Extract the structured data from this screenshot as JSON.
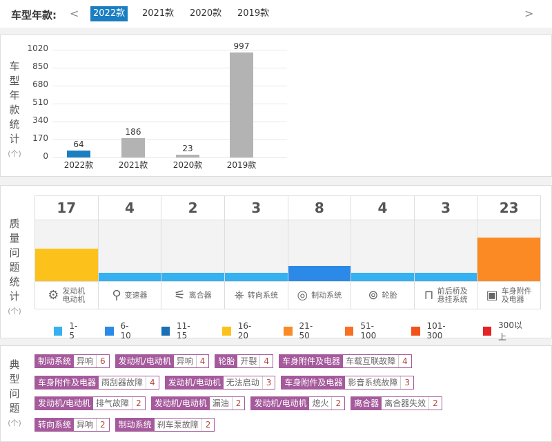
{
  "header": {
    "label": "车型年款:",
    "prev": "<",
    "next": ">",
    "years": [
      "2022款",
      "2021款",
      "2020款",
      "2019款"
    ],
    "selected": "2022款"
  },
  "chart_data": {
    "type": "bar",
    "ylabel_chars": [
      "车",
      "型",
      "年",
      "款",
      "统",
      "计"
    ],
    "unit": "(个)",
    "categories": [
      "2022款",
      "2021款",
      "2020款",
      "2019款"
    ],
    "values": [
      64,
      186,
      23,
      997
    ],
    "yticks": [
      0,
      170,
      340,
      510,
      680,
      850,
      1020
    ],
    "ylim": [
      0,
      1020
    ],
    "colors": [
      "#1b7ec2",
      "#b3b3b3",
      "#b3b3b3",
      "#b3b3b3"
    ],
    "grid": true
  },
  "quality": {
    "label_chars": [
      "质",
      "量",
      "问",
      "题",
      "统",
      "计"
    ],
    "unit": "(个)",
    "items": [
      {
        "count": "17",
        "label": [
          "发动机",
          "电动机"
        ],
        "icon": "engine-icon",
        "value": 17,
        "color": "#fcc21b"
      },
      {
        "count": "4",
        "label": [
          "变速器"
        ],
        "icon": "gear-shift-icon",
        "value": 4,
        "color": "#35b0f0"
      },
      {
        "count": "2",
        "label": [
          "离合器"
        ],
        "icon": "clutch-pedal-icon",
        "value": 2,
        "color": "#35b0f0"
      },
      {
        "count": "3",
        "label": [
          "转向系统"
        ],
        "icon": "steering-wheel-icon",
        "value": 3,
        "color": "#35b0f0"
      },
      {
        "count": "8",
        "label": [
          "制动系统"
        ],
        "icon": "brake-disc-icon",
        "value": 8,
        "color": "#2b8ae8"
      },
      {
        "count": "4",
        "label": [
          "轮胎"
        ],
        "icon": "tire-icon",
        "value": 4,
        "color": "#35b0f0"
      },
      {
        "count": "3",
        "label": [
          "前后桥及",
          "悬挂系统"
        ],
        "icon": "suspension-icon",
        "value": 3,
        "color": "#35b0f0"
      },
      {
        "count": "23",
        "label": [
          "车身附件",
          "及电器"
        ],
        "icon": "battery-icon",
        "value": 23,
        "color": "#fb8a24"
      }
    ],
    "legend": [
      {
        "label": "1-5",
        "color": "#35b0f0"
      },
      {
        "label": "6-10",
        "color": "#2b8ae8"
      },
      {
        "label": "11-15",
        "color": "#1a6fb5"
      },
      {
        "label": "16-20",
        "color": "#fcc21b"
      },
      {
        "label": "21-50",
        "color": "#fb8a24"
      },
      {
        "label": "51-100",
        "color": "#f77024"
      },
      {
        "label": "101-300",
        "color": "#f2521c"
      },
      {
        "label": "300以上",
        "color": "#e62222"
      }
    ]
  },
  "problems": {
    "label_chars": [
      "典",
      "型",
      "问",
      "题"
    ],
    "unit": "(个)",
    "rows": [
      [
        {
          "c": "制动系统",
          "p": "异响",
          "n": "6"
        },
        {
          "c": "发动机/电动机",
          "p": "异响",
          "n": "4"
        },
        {
          "c": "轮胎",
          "p": "开裂",
          "n": "4"
        },
        {
          "c": "车身附件及电器",
          "p": "车载互联故障",
          "n": "4"
        }
      ],
      [
        {
          "c": "车身附件及电器",
          "p": "雨刮器故障",
          "n": "4"
        },
        {
          "c": "发动机/电动机",
          "p": "无法启动",
          "n": "3"
        },
        {
          "c": "车身附件及电器",
          "p": "影音系统故障",
          "n": "3"
        }
      ],
      [
        {
          "c": "发动机/电动机",
          "p": "排气故障",
          "n": "2"
        },
        {
          "c": "发动机/电动机",
          "p": "漏油",
          "n": "2"
        },
        {
          "c": "发动机/电动机",
          "p": "熄火",
          "n": "2"
        },
        {
          "c": "离合器",
          "p": "离合器失效",
          "n": "2"
        }
      ],
      [
        {
          "c": "转向系统",
          "p": "异响",
          "n": "2"
        },
        {
          "c": "制动系统",
          "p": "刹车泵故障",
          "n": "2"
        }
      ]
    ]
  }
}
